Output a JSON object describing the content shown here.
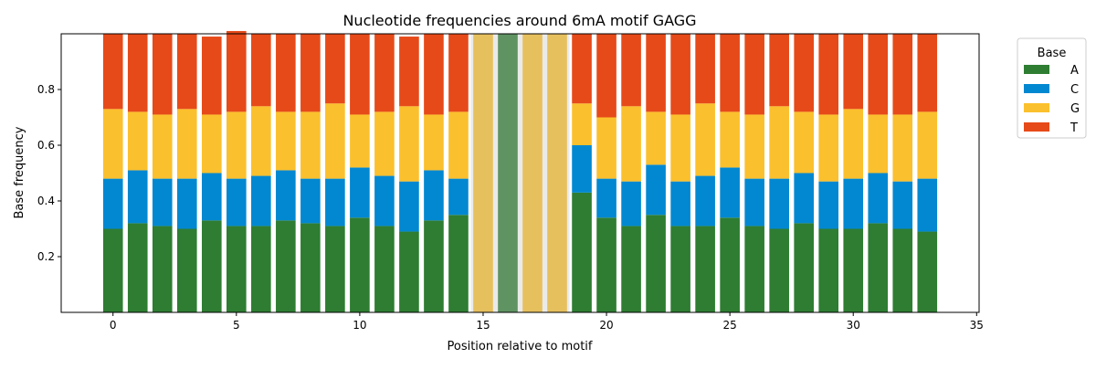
{
  "chart_data": {
    "type": "bar",
    "stacked": true,
    "title": "Nucleotide frequencies around 6mA motif GAGG",
    "xlabel": "Position relative to motif",
    "ylabel": "Base frequency",
    "xlim": [
      -2.1,
      35.1
    ],
    "ylim": [
      0,
      1
    ],
    "xticks": [
      0,
      5,
      10,
      15,
      20,
      25,
      30,
      35
    ],
    "yticks": [
      0.2,
      0.4,
      0.6,
      0.8
    ],
    "legend": {
      "title": "Base",
      "placement": "outside-top-right"
    },
    "positions": [
      0,
      1,
      2,
      3,
      4,
      5,
      6,
      7,
      8,
      9,
      10,
      11,
      12,
      13,
      14,
      15,
      16,
      17,
      18,
      19,
      20,
      21,
      22,
      23,
      24,
      25,
      26,
      27,
      28,
      29,
      30,
      31,
      32,
      33
    ],
    "highlight": {
      "positions": [
        15,
        16,
        17,
        18
      ],
      "motif": [
        "G",
        "A",
        "G",
        "G"
      ]
    },
    "series": [
      {
        "name": "A",
        "color": "#2e7d32",
        "values": [
          0.3,
          0.32,
          0.31,
          0.3,
          0.33,
          0.31,
          0.31,
          0.33,
          0.32,
          0.31,
          0.34,
          0.31,
          0.29,
          0.33,
          0.35,
          0,
          1,
          0,
          0,
          0.43,
          0.34,
          0.31,
          0.35,
          0.31,
          0.31,
          0.34,
          0.31,
          0.3,
          0.32,
          0.3,
          0.3,
          0.32,
          0.3,
          0.29
        ]
      },
      {
        "name": "C",
        "color": "#0288d1",
        "values": [
          0.18,
          0.19,
          0.17,
          0.18,
          0.17,
          0.17,
          0.18,
          0.18,
          0.16,
          0.17,
          0.18,
          0.18,
          0.18,
          0.18,
          0.13,
          0,
          0,
          0,
          0,
          0.17,
          0.14,
          0.16,
          0.18,
          0.16,
          0.18,
          0.18,
          0.17,
          0.18,
          0.18,
          0.17,
          0.18,
          0.18,
          0.17,
          0.19
        ]
      },
      {
        "name": "G",
        "color": "#fbc02d",
        "values": [
          0.25,
          0.21,
          0.23,
          0.25,
          0.21,
          0.24,
          0.25,
          0.21,
          0.24,
          0.27,
          0.19,
          0.23,
          0.27,
          0.2,
          0.24,
          1,
          0,
          1,
          1,
          0.15,
          0.22,
          0.27,
          0.19,
          0.24,
          0.26,
          0.2,
          0.23,
          0.26,
          0.22,
          0.24,
          0.25,
          0.21,
          0.24,
          0.24
        ]
      },
      {
        "name": "T",
        "color": "#e64a19",
        "values": [
          0.27,
          0.28,
          0.29,
          0.27,
          0.28,
          0.29,
          0.26,
          0.28,
          0.28,
          0.25,
          0.29,
          0.28,
          0.25,
          0.29,
          0.28,
          0,
          0,
          0,
          0,
          0.25,
          0.3,
          0.26,
          0.28,
          0.29,
          0.25,
          0.28,
          0.29,
          0.26,
          0.28,
          0.29,
          0.27,
          0.29,
          0.29,
          0.28
        ]
      }
    ]
  }
}
